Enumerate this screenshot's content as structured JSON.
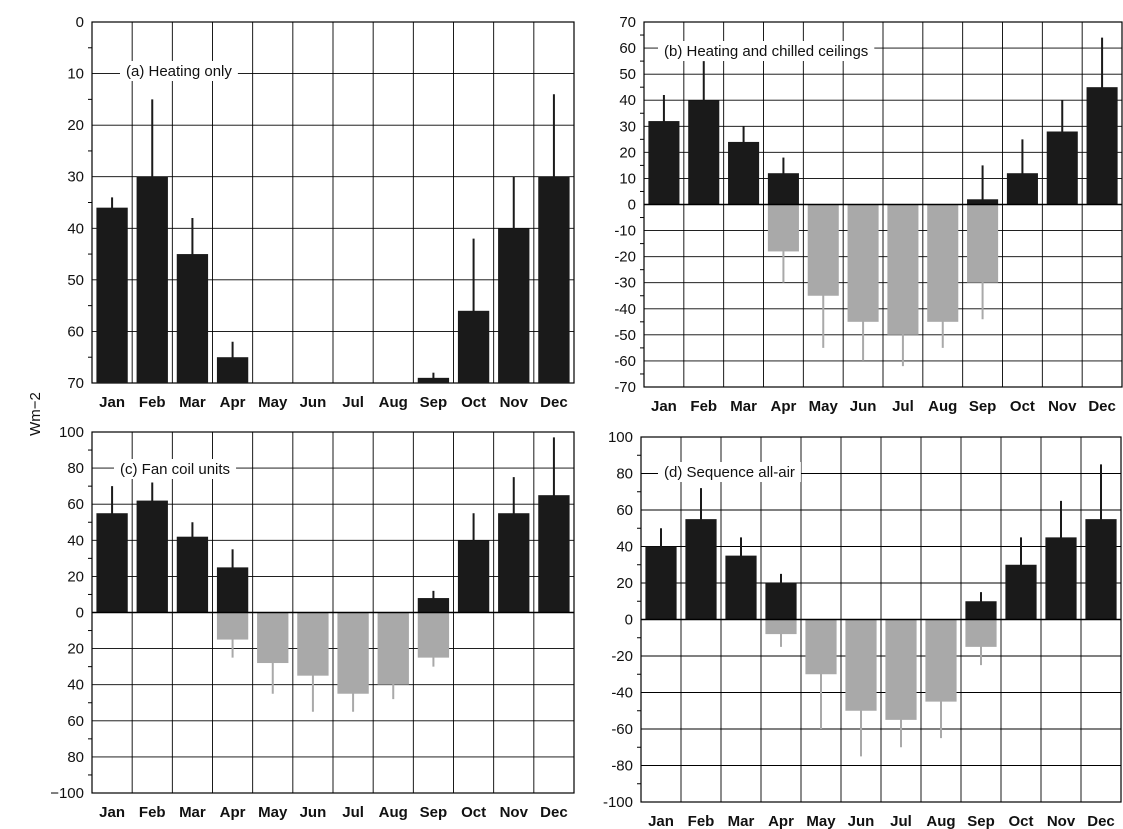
{
  "figure": {
    "y_axis_label": "Wm−2"
  },
  "colors": {
    "heating": "#1a1a1a",
    "cooling": "#a9a9a9",
    "grid": "#000000"
  },
  "chart_data": [
    {
      "type": "bar",
      "title": "(a) Heating only",
      "categories": [
        "Jan",
        "Feb",
        "Mar",
        "Apr",
        "May",
        "Jun",
        "Jul",
        "Aug",
        "Sep",
        "Oct",
        "Nov",
        "Dec"
      ],
      "yticks": [
        "0",
        "10",
        "20",
        "30",
        "40",
        "50",
        "60",
        "70"
      ],
      "ylim": [
        0,
        70
      ],
      "series": [
        {
          "values": [
            34,
            40,
            25,
            5,
            0,
            0,
            0,
            0,
            1,
            14,
            30,
            40
          ],
          "peaks": [
            36,
            55,
            32,
            8,
            0,
            0,
            0,
            0,
            2,
            28,
            40,
            56
          ]
        }
      ]
    },
    {
      "type": "bar",
      "title": "(b) Heating and chilled ceilings",
      "categories": [
        "Jan",
        "Feb",
        "Mar",
        "Apr",
        "May",
        "Jun",
        "Jul",
        "Aug",
        "Sep",
        "Oct",
        "Nov",
        "Dec"
      ],
      "yticks": [
        "70",
        "60",
        "50",
        "40",
        "30",
        "20",
        "10",
        "0",
        "-10",
        "-20",
        "-30",
        "-40",
        "-50",
        "-60",
        "-70"
      ],
      "ylim": [
        -70,
        70
      ],
      "series": [
        {
          "values": [
            32,
            40,
            24,
            12,
            0,
            0,
            0,
            0,
            2,
            12,
            28,
            45
          ],
          "peaks": [
            42,
            55,
            30,
            18,
            0,
            0,
            0,
            0,
            15,
            25,
            40,
            64
          ]
        },
        {
          "values": [
            0,
            0,
            0,
            -18,
            -35,
            -45,
            -50,
            -45,
            -30,
            0,
            0,
            0
          ],
          "peaks": [
            0,
            0,
            0,
            -30,
            -55,
            -60,
            -62,
            -55,
            -44,
            0,
            0,
            0
          ]
        }
      ]
    },
    {
      "type": "bar",
      "title": "(c) Fan coil units",
      "categories": [
        "Jan",
        "Feb",
        "Mar",
        "Apr",
        "May",
        "Jun",
        "Jul",
        "Aug",
        "Sep",
        "Oct",
        "Nov",
        "Dec"
      ],
      "yticks": [
        "100",
        "80",
        "60",
        "40",
        "20",
        "0",
        "20",
        "40",
        "60",
        "80",
        "−100"
      ],
      "ylim": [
        -100,
        100
      ],
      "series": [
        {
          "values": [
            55,
            62,
            42,
            25,
            0,
            0,
            0,
            0,
            8,
            40,
            55,
            65
          ],
          "peaks": [
            70,
            72,
            50,
            35,
            0,
            0,
            0,
            0,
            12,
            55,
            75,
            97
          ]
        },
        {
          "values": [
            0,
            0,
            0,
            -15,
            -28,
            -35,
            -45,
            -40,
            -25,
            0,
            0,
            0
          ],
          "peaks": [
            0,
            0,
            0,
            -25,
            -45,
            -55,
            -55,
            -48,
            -30,
            0,
            0,
            0
          ]
        }
      ]
    },
    {
      "type": "bar",
      "title": "(d) Sequence all-air",
      "categories": [
        "Jan",
        "Feb",
        "Mar",
        "Apr",
        "May",
        "Jun",
        "Jul",
        "Aug",
        "Sep",
        "Oct",
        "Nov",
        "Dec"
      ],
      "yticks": [
        "100",
        "80",
        "60",
        "40",
        "20",
        "0",
        "-20",
        "-40",
        "-60",
        "-80",
        "-100"
      ],
      "ylim": [
        -100,
        100
      ],
      "series": [
        {
          "values": [
            40,
            55,
            35,
            20,
            0,
            0,
            0,
            0,
            10,
            30,
            45,
            55
          ],
          "peaks": [
            50,
            72,
            45,
            25,
            0,
            0,
            0,
            0,
            15,
            45,
            65,
            85
          ]
        },
        {
          "values": [
            0,
            0,
            0,
            -8,
            -30,
            -50,
            -55,
            -45,
            -15,
            0,
            0,
            0
          ],
          "peaks": [
            0,
            0,
            0,
            -15,
            -60,
            -75,
            -70,
            -65,
            -25,
            0,
            0,
            0
          ]
        }
      ]
    }
  ]
}
